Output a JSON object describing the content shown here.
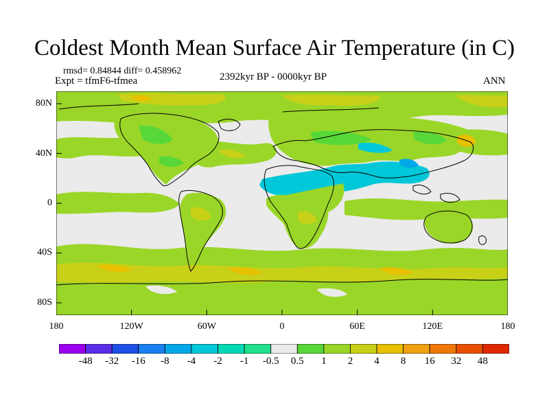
{
  "title": "Coldest Month Mean Surface Air Temperature (in C)",
  "stats": {
    "rmsd_label": "rmsd= 0.84844 diff= 0.458962"
  },
  "experiment": "Expt = tfmF6-tfmea",
  "period": "2392kyr BP - 0000kyr BP",
  "season": "ANN",
  "axes": {
    "lat_labels": [
      "80N",
      "40N",
      "0",
      "40S",
      "80S"
    ],
    "lat_values": [
      80,
      40,
      0,
      -40,
      -80
    ],
    "lon_labels": [
      "180",
      "120W",
      "60W",
      "0",
      "60E",
      "120E",
      "180"
    ],
    "lon_values": [
      -180,
      -120,
      -60,
      0,
      60,
      120,
      180
    ]
  },
  "colorbar": {
    "colors": [
      "#9b00f0",
      "#5a2ee8",
      "#1e4fe6",
      "#1a7ff0",
      "#00a8e8",
      "#00c8d8",
      "#00d8b4",
      "#20e08c",
      "#ebebeb",
      "#58d838",
      "#9ad628",
      "#c8d018",
      "#e8c000",
      "#f0a010",
      "#f07808",
      "#e85000",
      "#e02800"
    ],
    "labels": [
      "-48",
      "-32",
      "-16",
      "-8",
      "-4",
      "-2",
      "-1",
      "-0.5",
      "0.5",
      "1",
      "2",
      "4",
      "8",
      "16",
      "32",
      "48"
    ]
  },
  "map_colors": {
    "ocean_base": "#ebebeb",
    "land_base": "#9ad628",
    "small_positive": "#58d838",
    "moderate": "#c8d018",
    "warm": "#e8c000",
    "negative": "#00c8d8",
    "coast": "#000000"
  }
}
